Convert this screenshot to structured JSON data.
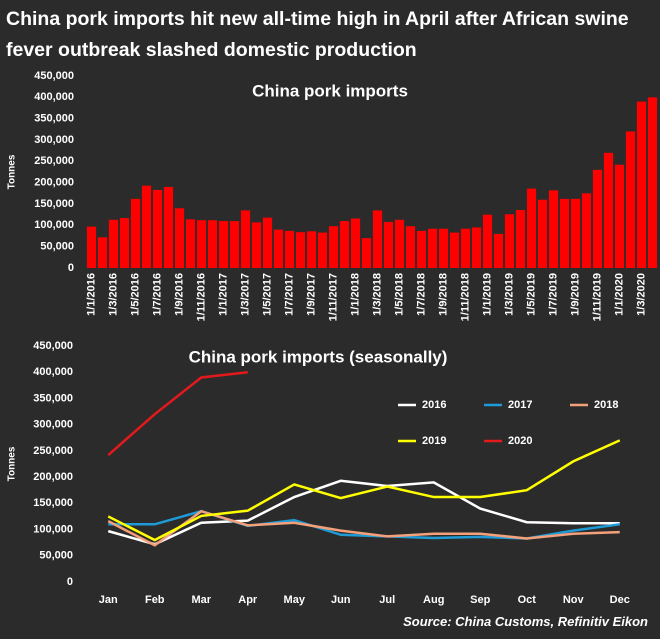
{
  "title": "China pork imports hit new all-time high in April after African swine fever outbreak slashed domestic production",
  "source": "Source: China Customs, Refinitiv Eikon",
  "chart_data": [
    {
      "type": "bar",
      "title": "China pork imports",
      "y_label": "Tonnes",
      "color": "#ff0000",
      "grid": false,
      "categories": [
        "1/1/2016",
        null,
        "1/3/2016",
        null,
        "1/5/2016",
        null,
        "1/7/2016",
        null,
        "1/9/2016",
        null,
        "1/11/2016",
        null,
        "1/1/2017",
        null,
        "1/3/2017",
        null,
        "1/5/2017",
        null,
        "1/7/2017",
        null,
        "1/9/2017",
        null,
        "1/11/2017",
        null,
        "1/1/2018",
        null,
        "1/3/2018",
        null,
        "1/5/2018",
        null,
        "1/7/2018",
        null,
        "1/9/2018",
        null,
        "1/11/2018",
        null,
        "1/1/2019",
        null,
        "1/3/2019",
        null,
        "1/5/2019",
        null,
        "1/7/2019",
        null,
        "1/9/2019",
        null,
        "1/11/2019",
        null,
        "1/1/2020",
        null,
        "1/3/2020",
        null
      ],
      "values": [
        97000,
        72000,
        113000,
        117000,
        162000,
        193000,
        183000,
        190000,
        140000,
        114000,
        112000,
        112000,
        110000,
        110000,
        135000,
        107000,
        118000,
        90000,
        87000,
        84000,
        86000,
        83000,
        98000,
        110000,
        116000,
        70000,
        135000,
        108000,
        113000,
        98000,
        87000,
        92000,
        92000,
        83000,
        92000,
        95000,
        125000,
        80000,
        126000,
        136000,
        186000,
        160000,
        182000,
        162000,
        162000,
        175000,
        230000,
        270000,
        242000,
        320000,
        390000,
        400000
      ],
      "ylim": [
        0,
        450000
      ],
      "yticks": [
        0,
        {
          "value": 50000,
          "label": "50,000"
        },
        {
          "value": 100000,
          "label": "100,000"
        },
        {
          "value": 150000,
          "label": "150,000"
        },
        {
          "value": 200000,
          "label": "200,000"
        },
        {
          "value": 250000,
          "label": "250,000"
        },
        {
          "value": 300000,
          "label": "300,000"
        },
        {
          "value": 350000,
          "label": "350,000"
        },
        {
          "value": 400000,
          "label": "400,000"
        },
        {
          "value": 450000,
          "label": "450,000"
        }
      ]
    },
    {
      "type": "line",
      "title": "China pork imports (seasonally)",
      "y_label": "Tonnes",
      "grid": false,
      "categories": [
        "Jan",
        "Feb",
        "Mar",
        "Apr",
        "May",
        "Jun",
        "Jul",
        "Aug",
        "Sep",
        "Oct",
        "Nov",
        "Dec"
      ],
      "series": [
        {
          "name": "2016",
          "color": "#ffffff",
          "values": [
            97000,
            72000,
            113000,
            117000,
            162000,
            193000,
            183000,
            190000,
            140000,
            114000,
            112000,
            112000
          ]
        },
        {
          "name": "2017",
          "color": "#1e9bd7",
          "values": [
            110000,
            110000,
            135000,
            107000,
            118000,
            90000,
            87000,
            84000,
            86000,
            83000,
            98000,
            110000
          ]
        },
        {
          "name": "2018",
          "color": "#f4a07a",
          "values": [
            116000,
            70000,
            135000,
            108000,
            113000,
            98000,
            87000,
            92000,
            92000,
            83000,
            92000,
            95000
          ]
        },
        {
          "name": "2019",
          "color": "#ffff00",
          "values": [
            125000,
            80000,
            126000,
            136000,
            186000,
            160000,
            182000,
            162000,
            162000,
            175000,
            230000,
            270000
          ]
        },
        {
          "name": "2020",
          "color": "#e3191c",
          "values": [
            242000,
            320000,
            390000,
            400000,
            null,
            null,
            null,
            null,
            null,
            null,
            null,
            null
          ]
        }
      ],
      "ylim": [
        0,
        450000
      ],
      "yticks": [
        0,
        {
          "value": 50000,
          "label": "50,000"
        },
        {
          "value": 100000,
          "label": "100,000"
        },
        {
          "value": 150000,
          "label": "150,000"
        },
        {
          "value": 200000,
          "label": "200,000"
        },
        {
          "value": 250000,
          "label": "250,000"
        },
        {
          "value": 300000,
          "label": "300,000"
        },
        {
          "value": 350000,
          "label": "350,000"
        },
        {
          "value": 400000,
          "label": "400,000"
        },
        {
          "value": 450000,
          "label": "450,000"
        }
      ]
    }
  ]
}
